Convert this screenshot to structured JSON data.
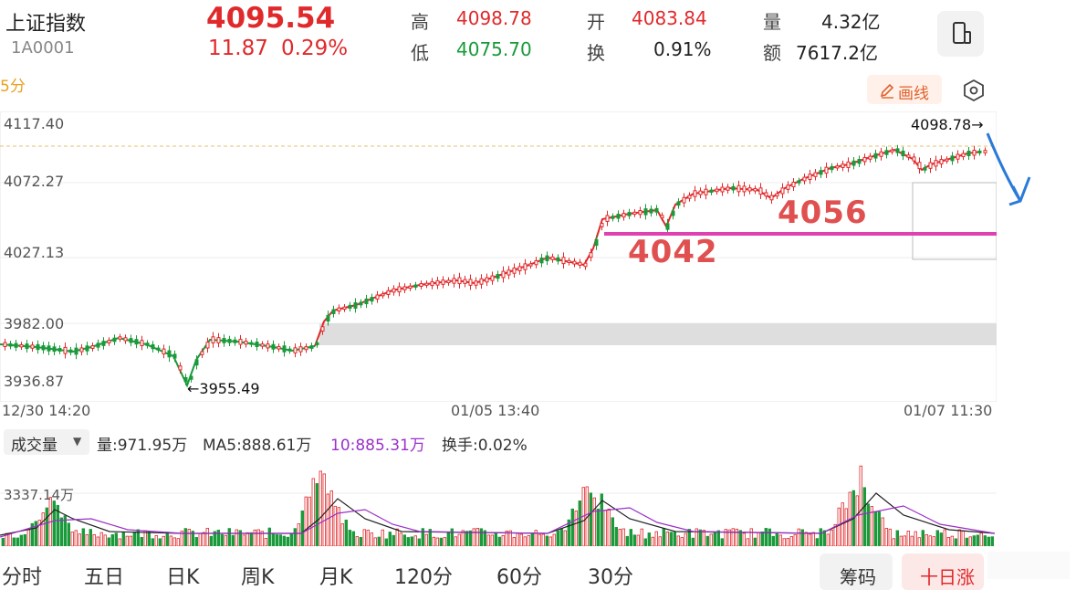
{
  "header": {
    "name": "上证指数",
    "code": "1A0001",
    "price": "4095.54",
    "change": "11.87",
    "change_pct": "0.29%",
    "stats": {
      "high_label": "高",
      "high": "4098.78",
      "low_label": "低",
      "low": "4075.70",
      "open_label": "开",
      "open": "4083.84",
      "turnover_label": "换",
      "turnover": "0.91%",
      "volume_label": "量",
      "volume": "4.32亿",
      "amount_label": "额",
      "amount": "7617.2亿"
    }
  },
  "toolbar": {
    "period": "5分",
    "draw_label": "画线"
  },
  "chart": {
    "price_ticks": [
      "4117.40",
      "4072.27",
      "4027.13",
      "3982.00",
      "3936.87"
    ],
    "time_ticks": [
      "12/30 14:20",
      "01/05 13:40",
      "01/07 11:30"
    ],
    "high_marker": "4098.78→",
    "low_marker": "←3955.49",
    "annotation_a": "4056",
    "annotation_b": "4042"
  },
  "volume": {
    "dropdown_label": "成交量",
    "vol_label": "量:971.95万",
    "ma5_label": "MA5:888.61万",
    "ma10_label": "10:885.31万",
    "turnover_label": "换手:0.02%",
    "ref_tick": "3337.14万"
  },
  "tabs": [
    "分时",
    "五日",
    "日K",
    "周K",
    "月K",
    "120分",
    "60分",
    "30分"
  ],
  "bottom_buttons": {
    "chip": "筹码",
    "right": "十日涨"
  },
  "colors": {
    "up": "#e0292b",
    "down": "#1a9a3a",
    "annotation": "#e05050",
    "line": "#e040b0",
    "ma_black": "#222222",
    "ma_purple": "#9b30c8",
    "arrow": "#2a7ad8"
  },
  "chart_data": {
    "type": "candlestick",
    "ylim": [
      3936.87,
      4117.4
    ],
    "high": 4098.78,
    "low": 3955.49,
    "annotated_levels": [
      4056,
      4042
    ]
  }
}
